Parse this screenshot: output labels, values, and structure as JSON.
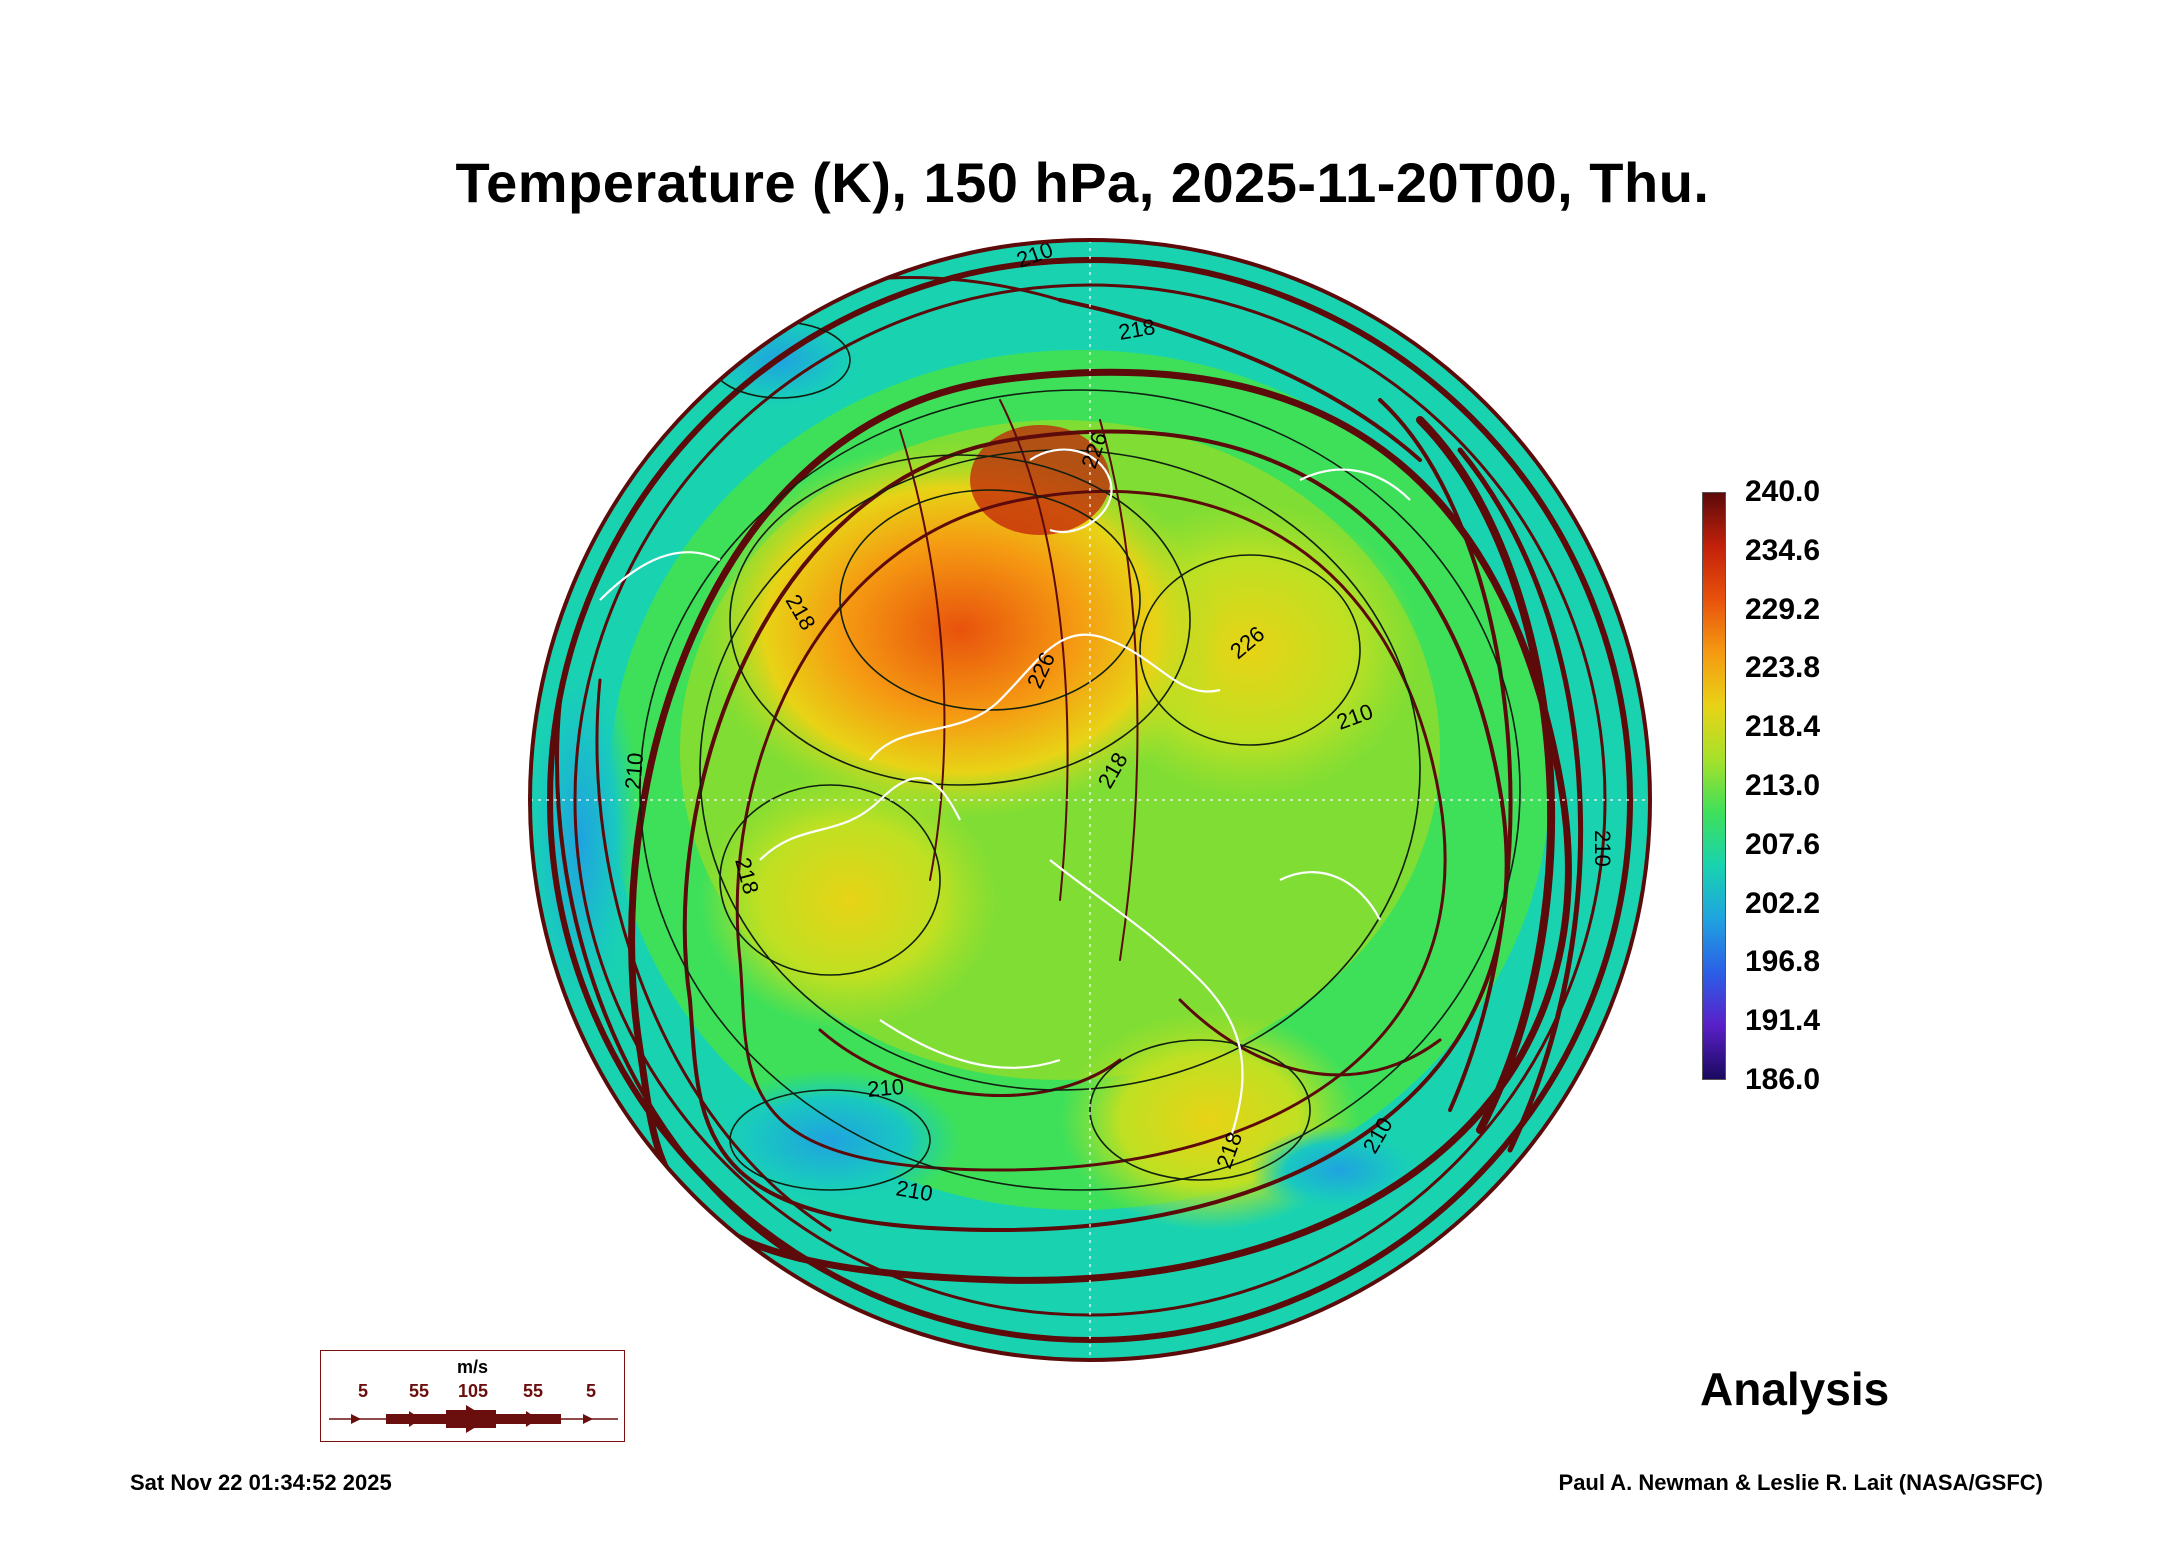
{
  "chart_data": {
    "type": "heatmap",
    "title": "Temperature (K), 150 hPa, 2025-11-20T00, Thu.",
    "projection": "north polar stereographic",
    "variable": "Temperature",
    "units": "K",
    "pressure_level": "150 hPa",
    "colorbar": {
      "min": 186.0,
      "max": 240.0,
      "ticks": [
        "240.0",
        "234.6",
        "229.2",
        "223.8",
        "218.4",
        "213.0",
        "207.6",
        "202.2",
        "196.8",
        "191.4",
        "186.0"
      ],
      "colors": [
        "#1a0a5e",
        "#5a1fc8",
        "#2b5fe6",
        "#1fa3e0",
        "#19d3b0",
        "#3ee05a",
        "#a6e12a",
        "#e8d316",
        "#f59a12",
        "#e8520c",
        "#c2210a",
        "#5c0a0a"
      ]
    },
    "contour_labels": [
      "210",
      "218",
      "226",
      "218",
      "226",
      "218",
      "210",
      "210",
      "218",
      "210",
      "210",
      "210",
      "210",
      "218",
      "226"
    ],
    "overlays": [
      "temperature contours",
      "wind streamlines",
      "coastlines"
    ]
  },
  "wind_legend": {
    "unit": "m/s",
    "values": [
      "5",
      "55",
      "105",
      "55",
      "5"
    ],
    "color": "#6b0e0e"
  },
  "annotation": "Analysis",
  "footer": {
    "timestamp": "Sat Nov 22 01:34:52 2025",
    "credit": "Paul A. Newman & Leslie R. Lait (NASA/GSFC)"
  }
}
